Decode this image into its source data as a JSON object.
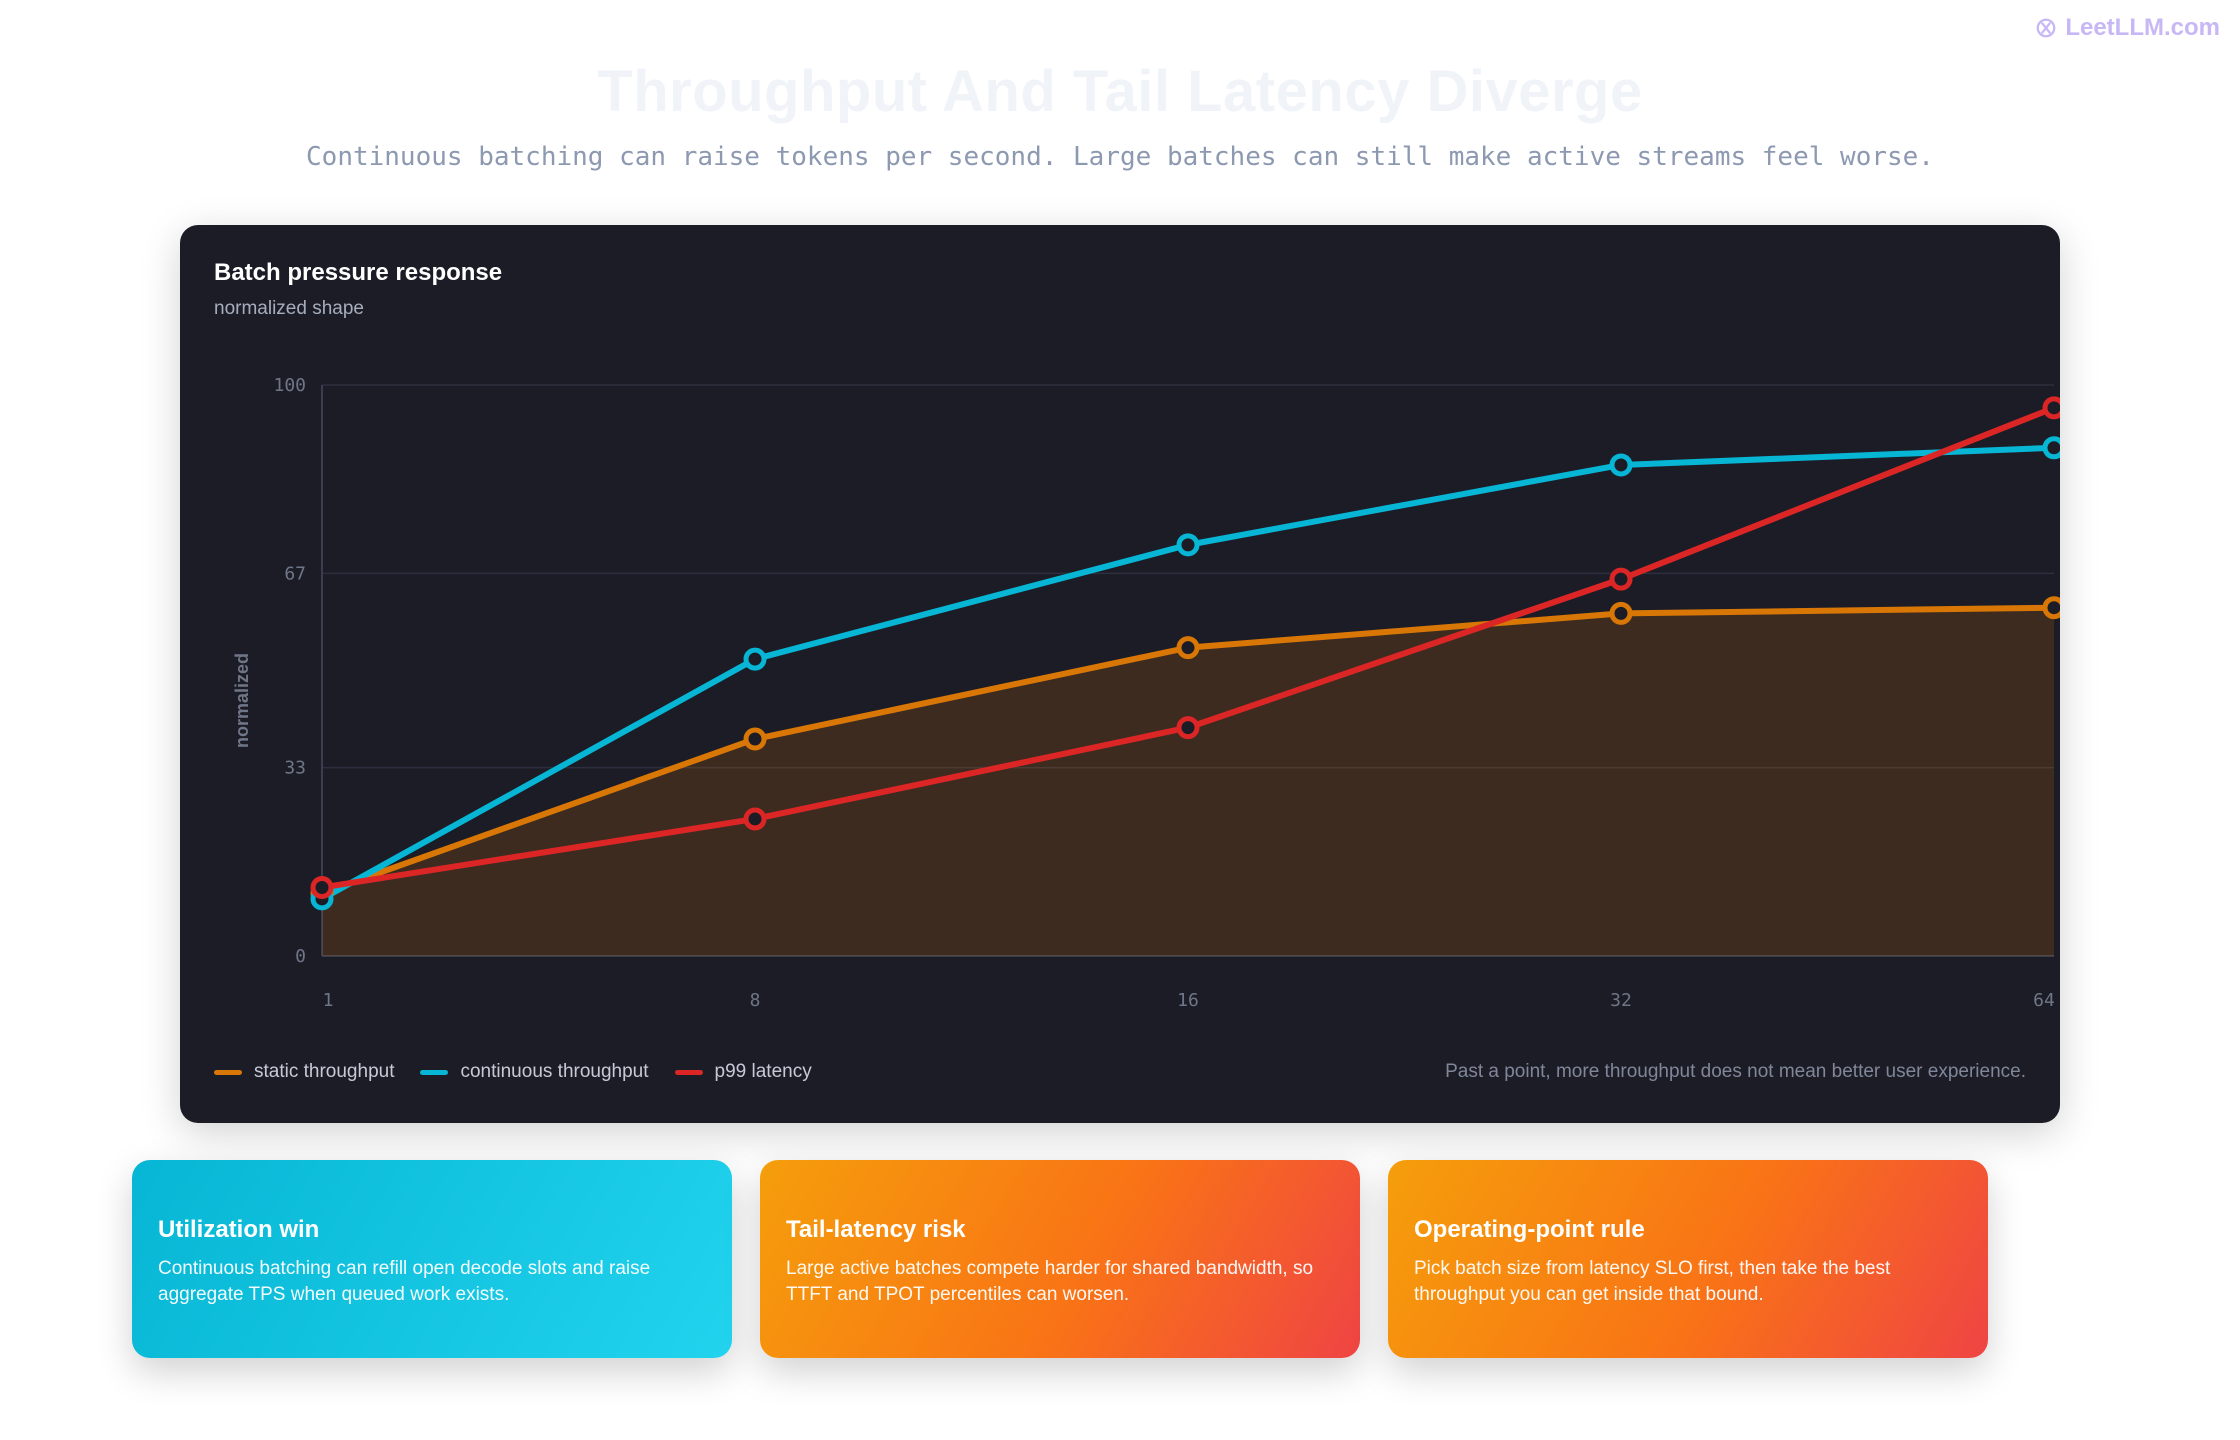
{
  "brand": {
    "name": "LeetLLM.com",
    "icon": "leetllm-logo-icon"
  },
  "header": {
    "title": "Throughput And Tail Latency Diverge",
    "subtitle": "Continuous batching can raise tokens per second. Large batches can still make active streams feel worse."
  },
  "chart_data": {
    "type": "line",
    "title": "Batch pressure response",
    "subtitle": "normalized shape",
    "xlabel": "",
    "ylabel": "normalized",
    "categories": [
      "1",
      "8",
      "16",
      "32",
      "64"
    ],
    "yticks": [
      "0",
      "33",
      "67",
      "100"
    ],
    "ylim": [
      0,
      100
    ],
    "grid": true,
    "legend_position": "bottom-left",
    "series": [
      {
        "name": "static throughput",
        "color": "#d97706",
        "fill": true,
        "values": [
          11,
          38,
          54,
          60,
          61
        ]
      },
      {
        "name": "continuous throughput",
        "color": "#06b6d4",
        "fill": false,
        "values": [
          10,
          52,
          72,
          86,
          89
        ]
      },
      {
        "name": "p99 latency",
        "color": "#dc2626",
        "fill": false,
        "values": [
          12,
          24,
          40,
          66,
          96
        ]
      }
    ],
    "note": "Past a point, more throughput does not mean better user experience."
  },
  "cards": [
    {
      "title": "Utilization win",
      "body": "Continuous batching can refill open decode slots and raise aggregate TPS when queued work exists.",
      "color": "#06b6d4"
    },
    {
      "title": "Tail-latency risk",
      "body": "Large active batches compete harder for shared bandwidth, so TTFT and TPOT percentiles can worsen.",
      "color": "#f97316"
    },
    {
      "title": "Operating-point rule",
      "body": "Pick batch size from latency SLO first, then take the best throughput you can get inside that bound.",
      "color": "#f59e0b"
    }
  ]
}
